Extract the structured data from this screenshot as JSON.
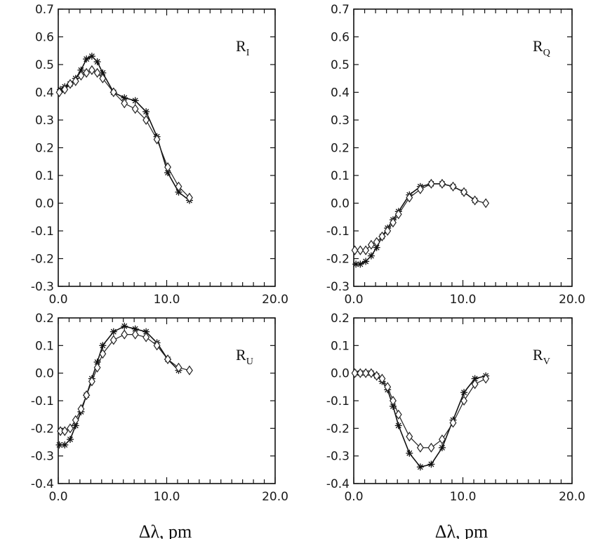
{
  "chart_data": [
    {
      "id": "RI",
      "type": "line",
      "label_main": "R",
      "label_sub": "I",
      "xlabel": "",
      "xlim": [
        0,
        20
      ],
      "ylim": [
        -0.3,
        0.7
      ],
      "xticks": [
        0,
        10,
        20
      ],
      "xtick_labels": [
        "0.0",
        "10.0",
        "20.0"
      ],
      "yticks": [
        -0.3,
        -0.2,
        -0.1,
        0,
        0.1,
        0.2,
        0.3,
        0.4,
        0.5,
        0.6,
        0.7
      ],
      "ytick_labels": [
        "-0.3",
        "-0.2",
        "-0.1",
        "0.0",
        "0.1",
        "0.2",
        "0.3",
        "0.4",
        "0.5",
        "0.6",
        "0.7"
      ],
      "series": [
        {
          "name": "asterisk",
          "marker": "star",
          "x": [
            0.2,
            0.6,
            1.1,
            1.6,
            2.1,
            2.6,
            3.1,
            3.6,
            4.1,
            5.1,
            6.1,
            7.1,
            8.1,
            9.1,
            10.1,
            11.1,
            12.1
          ],
          "y": [
            0.41,
            0.42,
            0.43,
            0.45,
            0.48,
            0.52,
            0.53,
            0.51,
            0.47,
            0.4,
            0.38,
            0.37,
            0.33,
            0.24,
            0.11,
            0.04,
            0.01
          ]
        },
        {
          "name": "diamond",
          "marker": "diamond",
          "x": [
            0.1,
            0.6,
            1.1,
            1.6,
            2.1,
            2.6,
            3.1,
            3.6,
            4.1,
            5.1,
            6.1,
            7.1,
            8.1,
            9.1,
            10.1,
            11.1,
            12.1
          ],
          "y": [
            0.4,
            0.41,
            0.43,
            0.44,
            0.46,
            0.47,
            0.48,
            0.47,
            0.45,
            0.4,
            0.36,
            0.34,
            0.3,
            0.23,
            0.13,
            0.06,
            0.02
          ]
        }
      ]
    },
    {
      "id": "RQ",
      "type": "line",
      "label_main": "R",
      "label_sub": "Q",
      "xlabel": "",
      "xlim": [
        0,
        20
      ],
      "ylim": [
        -0.3,
        0.7
      ],
      "xticks": [
        0,
        10,
        20
      ],
      "xtick_labels": [
        "0.0",
        "10.0",
        "20.0"
      ],
      "yticks": [
        -0.3,
        -0.2,
        -0.1,
        0,
        0.1,
        0.2,
        0.3,
        0.4,
        0.5,
        0.6,
        0.7
      ],
      "ytick_labels": [
        "-0.3",
        "-0.2",
        "-0.1",
        "0.0",
        "0.1",
        "0.2",
        "0.3",
        "0.4",
        "0.5",
        "0.6",
        "0.7"
      ],
      "series": [
        {
          "name": "asterisk",
          "marker": "star",
          "x": [
            0.2,
            0.6,
            1.1,
            1.6,
            2.1,
            2.6,
            3.1,
            3.6,
            4.1,
            5.1,
            6.1,
            7.1,
            8.1,
            9.1,
            10.1,
            11.1
          ],
          "y": [
            -0.22,
            -0.22,
            -0.21,
            -0.19,
            -0.16,
            -0.12,
            -0.09,
            -0.06,
            -0.03,
            0.03,
            0.06,
            0.07,
            0.07,
            0.06,
            0.04,
            0.01
          ]
        },
        {
          "name": "diamond",
          "marker": "diamond",
          "x": [
            0.1,
            0.6,
            1.1,
            1.6,
            2.1,
            2.6,
            3.1,
            3.6,
            4.1,
            5.1,
            6.1,
            7.1,
            8.1,
            9.1,
            10.1,
            11.1,
            12.1
          ],
          "y": [
            -0.17,
            -0.17,
            -0.17,
            -0.15,
            -0.14,
            -0.12,
            -0.1,
            -0.07,
            -0.04,
            0.02,
            0.05,
            0.07,
            0.07,
            0.06,
            0.04,
            0.01,
            0.0
          ]
        }
      ]
    },
    {
      "id": "RU",
      "type": "line",
      "label_main": "R",
      "label_sub": "U",
      "xlabel": "Δλ, pm",
      "xlim": [
        0,
        20
      ],
      "ylim": [
        -0.4,
        0.2
      ],
      "xticks": [
        0,
        10,
        20
      ],
      "xtick_labels": [
        "0.0",
        "10.0",
        "20.0"
      ],
      "yticks": [
        -0.4,
        -0.3,
        -0.2,
        -0.1,
        0,
        0.1,
        0.2
      ],
      "ytick_labels": [
        "-0.4",
        "-0.3",
        "-0.2",
        "-0.1",
        "0.0",
        "0.1",
        "0.2"
      ],
      "series": [
        {
          "name": "asterisk",
          "marker": "star",
          "x": [
            0.1,
            0.6,
            1.1,
            1.6,
            2.1,
            2.6,
            3.1,
            3.6,
            4.1,
            5.1,
            6.1,
            7.1,
            8.1,
            9.1,
            10.1,
            11.1
          ],
          "y": [
            -0.26,
            -0.26,
            -0.24,
            -0.19,
            -0.14,
            -0.08,
            -0.02,
            0.04,
            0.1,
            0.15,
            0.17,
            0.16,
            0.15,
            0.11,
            0.05,
            0.01
          ]
        },
        {
          "name": "diamond",
          "marker": "diamond",
          "x": [
            0.2,
            0.6,
            1.1,
            1.6,
            2.1,
            2.6,
            3.1,
            3.6,
            4.1,
            5.1,
            6.1,
            7.1,
            8.1,
            9.1,
            10.1,
            11.1,
            12.1
          ],
          "y": [
            -0.21,
            -0.21,
            -0.2,
            -0.17,
            -0.13,
            -0.08,
            -0.03,
            0.02,
            0.07,
            0.12,
            0.14,
            0.14,
            0.13,
            0.1,
            0.05,
            0.02,
            0.01
          ]
        }
      ]
    },
    {
      "id": "RV",
      "type": "line",
      "label_main": "R",
      "label_sub": "V",
      "xlabel": "Δλ, pm",
      "xlim": [
        0,
        20
      ],
      "ylim": [
        -0.4,
        0.2
      ],
      "xticks": [
        0,
        10,
        20
      ],
      "xtick_labels": [
        "0.0",
        "10.0",
        "20.0"
      ],
      "yticks": [
        -0.4,
        -0.3,
        -0.2,
        -0.1,
        0,
        0.1,
        0.2
      ],
      "ytick_labels": [
        "-0.4",
        "-0.3",
        "-0.2",
        "-0.1",
        "0.0",
        "0.1",
        "0.2"
      ],
      "series": [
        {
          "name": "asterisk",
          "marker": "star",
          "x": [
            0.2,
            0.6,
            1.1,
            1.6,
            2.1,
            2.6,
            3.1,
            3.6,
            4.1,
            5.1,
            6.1,
            7.1,
            8.1,
            9.1,
            10.1,
            11.1,
            12.1
          ],
          "y": [
            0.0,
            0.0,
            0.0,
            0.0,
            -0.01,
            -0.03,
            -0.06,
            -0.12,
            -0.19,
            -0.29,
            -0.34,
            -0.33,
            -0.27,
            -0.17,
            -0.07,
            -0.02,
            -0.01
          ]
        },
        {
          "name": "diamond",
          "marker": "diamond",
          "x": [
            0.1,
            0.6,
            1.1,
            1.6,
            2.1,
            2.6,
            3.1,
            3.6,
            4.1,
            5.1,
            6.1,
            7.1,
            8.1,
            9.1,
            10.1,
            11.1,
            12.1
          ],
          "y": [
            0.0,
            0.0,
            0.0,
            0.0,
            -0.01,
            -0.02,
            -0.05,
            -0.1,
            -0.15,
            -0.23,
            -0.27,
            -0.27,
            -0.24,
            -0.18,
            -0.1,
            -0.04,
            -0.02
          ]
        }
      ]
    }
  ]
}
